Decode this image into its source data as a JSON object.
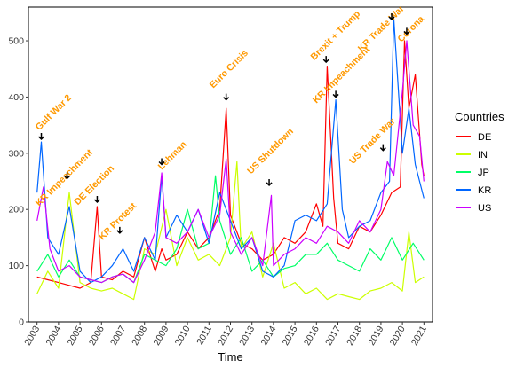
{
  "chart_data": {
    "type": "line",
    "title": "",
    "xlabel": "Time",
    "ylabel": "",
    "xlim": [
      2002.6,
      2021.4
    ],
    "ylim": [
      0,
      560
    ],
    "x_ticks": [
      "2003",
      "2004",
      "2005",
      "2006",
      "2007",
      "2008",
      "2009",
      "2010",
      "2011",
      "2012",
      "2013",
      "2014",
      "2015",
      "2016",
      "2017",
      "2018",
      "2019",
      "2020",
      "2021"
    ],
    "y_ticks": [
      0,
      100,
      200,
      300,
      400,
      500
    ],
    "legend": {
      "title": "Countries",
      "position": "right"
    },
    "series": [
      {
        "name": "DE",
        "color": "#FF0000",
        "x": [
          2003.0,
          2003.5,
          2004.0,
          2004.5,
          2005.0,
          2005.5,
          2005.8,
          2006.0,
          2006.5,
          2007.0,
          2007.5,
          2008.0,
          2008.5,
          2008.8,
          2009.0,
          2009.5,
          2010.0,
          2010.5,
          2011.0,
          2011.5,
          2011.8,
          2012.0,
          2012.5,
          2013.0,
          2013.5,
          2014.0,
          2014.5,
          2015.0,
          2015.5,
          2016.0,
          2016.3,
          2016.5,
          2016.8,
          2017.0,
          2017.5,
          2018.0,
          2018.5,
          2019.0,
          2019.5,
          2019.9,
          2020.1,
          2020.3,
          2020.6,
          2020.9,
          2021.0
        ],
        "values": [
          80,
          75,
          70,
          65,
          60,
          70,
          205,
          80,
          75,
          90,
          80,
          150,
          90,
          130,
          110,
          120,
          160,
          130,
          150,
          200,
          380,
          190,
          140,
          130,
          110,
          120,
          150,
          140,
          160,
          210,
          170,
          455,
          220,
          140,
          130,
          170,
          160,
          190,
          230,
          240,
          500,
          380,
          440,
          280,
          260
        ]
      },
      {
        "name": "IN",
        "color": "#CCFF00",
        "x": [
          2003.0,
          2003.5,
          2004.0,
          2004.5,
          2005.0,
          2005.5,
          2006.0,
          2006.5,
          2007.0,
          2007.5,
          2008.0,
          2008.5,
          2009.0,
          2009.5,
          2010.0,
          2010.5,
          2011.0,
          2011.5,
          2012.0,
          2012.3,
          2012.5,
          2013.0,
          2013.5,
          2014.0,
          2014.5,
          2015.0,
          2015.5,
          2016.0,
          2016.5,
          2017.0,
          2017.5,
          2018.0,
          2018.5,
          2019.0,
          2019.5,
          2020.0,
          2020.3,
          2020.6,
          2021.0
        ],
        "values": [
          50,
          90,
          60,
          230,
          70,
          60,
          55,
          60,
          50,
          40,
          130,
          120,
          200,
          100,
          150,
          110,
          120,
          100,
          150,
          285,
          130,
          160,
          80,
          140,
          60,
          70,
          50,
          60,
          40,
          50,
          45,
          40,
          55,
          60,
          70,
          55,
          160,
          70,
          80
        ]
      },
      {
        "name": "JP",
        "color": "#00FF66",
        "x": [
          2003.0,
          2003.5,
          2004.0,
          2004.5,
          2005.0,
          2005.5,
          2006.0,
          2006.5,
          2007.0,
          2007.5,
          2008.0,
          2008.5,
          2009.0,
          2009.5,
          2010.0,
          2010.5,
          2011.0,
          2011.3,
          2011.5,
          2012.0,
          2012.5,
          2013.0,
          2013.5,
          2014.0,
          2014.5,
          2015.0,
          2015.5,
          2016.0,
          2016.5,
          2017.0,
          2017.5,
          2018.0,
          2018.5,
          2019.0,
          2019.5,
          2020.0,
          2020.5,
          2021.0
        ],
        "values": [
          90,
          120,
          80,
          110,
          80,
          75,
          70,
          80,
          85,
          70,
          120,
          110,
          100,
          130,
          200,
          130,
          140,
          260,
          180,
          120,
          150,
          90,
          110,
          80,
          95,
          100,
          120,
          120,
          140,
          110,
          100,
          90,
          130,
          110,
          150,
          110,
          140,
          110
        ]
      },
      {
        "name": "KR",
        "color": "#0066FF",
        "x": [
          2003.0,
          2003.2,
          2003.5,
          2004.0,
          2004.5,
          2005.0,
          2005.5,
          2006.0,
          2006.5,
          2007.0,
          2007.5,
          2008.0,
          2008.5,
          2008.8,
          2009.0,
          2009.5,
          2010.0,
          2010.5,
          2011.0,
          2011.5,
          2012.0,
          2012.5,
          2013.0,
          2013.5,
          2014.0,
          2014.5,
          2015.0,
          2015.5,
          2016.0,
          2016.5,
          2016.9,
          2017.2,
          2017.5,
          2018.0,
          2018.5,
          2019.0,
          2019.4,
          2019.6,
          2020.0,
          2020.3,
          2020.6,
          2021.0
        ],
        "values": [
          230,
          320,
          150,
          120,
          205,
          90,
          70,
          80,
          100,
          130,
          90,
          150,
          110,
          260,
          150,
          190,
          160,
          200,
          140,
          230,
          180,
          130,
          150,
          90,
          80,
          100,
          180,
          190,
          180,
          210,
          395,
          200,
          150,
          170,
          180,
          230,
          250,
          540,
          300,
          380,
          280,
          220
        ]
      },
      {
        "name": "US",
        "color": "#CC00FF",
        "x": [
          2003.0,
          2003.3,
          2003.6,
          2004.0,
          2004.5,
          2005.0,
          2005.5,
          2006.0,
          2006.5,
          2007.0,
          2007.5,
          2008.0,
          2008.5,
          2008.8,
          2009.0,
          2009.5,
          2010.0,
          2010.5,
          2011.0,
          2011.5,
          2011.8,
          2012.0,
          2012.5,
          2013.0,
          2013.5,
          2013.9,
          2014.0,
          2014.5,
          2015.0,
          2015.5,
          2016.0,
          2016.5,
          2017.0,
          2017.5,
          2018.0,
          2018.5,
          2019.0,
          2019.3,
          2019.6,
          2020.0,
          2020.2,
          2020.5,
          2020.8,
          2021.0
        ],
        "values": [
          180,
          240,
          130,
          90,
          100,
          80,
          75,
          70,
          80,
          85,
          70,
          110,
          160,
          265,
          150,
          140,
          160,
          200,
          150,
          190,
          290,
          160,
          120,
          150,
          100,
          225,
          100,
          120,
          130,
          150,
          140,
          170,
          160,
          140,
          180,
          160,
          200,
          285,
          260,
          410,
          500,
          350,
          330,
          250
        ]
      }
    ],
    "annotations": [
      {
        "text": "Gulf War 2",
        "x": 2003.1,
        "y": 340,
        "arrow_x": 2003.2,
        "arrow_y": 325
      },
      {
        "text": "KR Impeachment",
        "x": 2003.1,
        "y": 205,
        "arrow_x": 2004.4,
        "arrow_y": 255
      },
      {
        "text": "DE Election",
        "x": 2004.9,
        "y": 207,
        "arrow_x": 2005.8,
        "arrow_y": 213
      },
      {
        "text": "KR Protest",
        "x": 2006.05,
        "y": 145,
        "arrow_x": 2006.85,
        "arrow_y": 158
      },
      {
        "text": "Lehman",
        "x": 2008.8,
        "y": 270,
        "arrow_x": 2008.8,
        "arrow_y": 280
      },
      {
        "text": "Euro Crisis",
        "x": 2011.2,
        "y": 415,
        "arrow_x": 2011.8,
        "arrow_y": 395
      },
      {
        "text": "US Shutdown",
        "x": 2012.95,
        "y": 262,
        "arrow_x": 2013.8,
        "arrow_y": 243
      },
      {
        "text": "Brexit + Trump",
        "x": 2015.9,
        "y": 465,
        "arrow_x": 2016.45,
        "arrow_y": 462
      },
      {
        "text": "KR Impeachment",
        "x": 2016.0,
        "y": 388,
        "arrow_x": 2016.9,
        "arrow_y": 400
      },
      {
        "text": "US Trade War",
        "x": 2017.7,
        "y": 280,
        "arrow_x": 2019.1,
        "arrow_y": 305
      },
      {
        "text": "KR Trade War",
        "x": 2018.1,
        "y": 480,
        "arrow_x": 2019.5,
        "arrow_y": 538
      },
      {
        "text": "Corona",
        "x": 2019.95,
        "y": 497,
        "arrow_x": 2020.2,
        "arrow_y": 512
      }
    ],
    "grid": false
  }
}
